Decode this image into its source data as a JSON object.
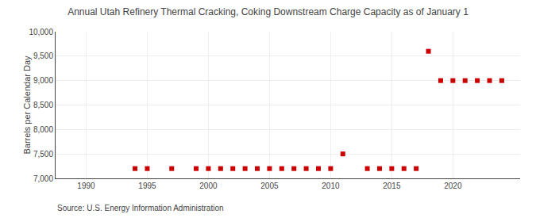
{
  "chart_data": {
    "type": "scatter",
    "title": "Annual Utah Refinery Thermal Cracking, Coking Downstream Charge Capacity as of January 1",
    "ylabel": "Barrels per Calendar Day",
    "annotations": [
      "Source: U.S. Energy Information Administration"
    ],
    "x": [
      1994,
      1995,
      1997,
      1999,
      2000,
      2001,
      2002,
      2003,
      2004,
      2005,
      2006,
      2007,
      2008,
      2009,
      2010,
      2011,
      2013,
      2014,
      2015,
      2016,
      2017,
      2018,
      2019,
      2020,
      2021,
      2022,
      2023,
      2024
    ],
    "values": [
      7200,
      7200,
      7200,
      7200,
      7200,
      7200,
      7200,
      7200,
      7200,
      7200,
      7200,
      7200,
      7200,
      7200,
      7200,
      7500,
      7200,
      7200,
      7200,
      7200,
      7200,
      9600,
      9000,
      9000,
      9000,
      9000,
      9000,
      9000
    ],
    "color": "#cc0000",
    "marker": "square",
    "xlim": [
      1987.5,
      2025.5
    ],
    "xticks": [
      1990,
      1995,
      2000,
      2005,
      2010,
      2015,
      2020
    ],
    "ylim": [
      7000,
      10000
    ],
    "yticks": [
      {
        "value": 7000,
        "label": "7,000"
      },
      {
        "value": 7500,
        "label": "7,500"
      },
      {
        "value": 8000,
        "label": "8,000"
      },
      {
        "value": 8500,
        "label": "8,500"
      },
      {
        "value": 9000,
        "label": "9,000"
      },
      {
        "value": 9500,
        "label": "9,500"
      },
      {
        "value": 10000,
        "label": "10,000"
      }
    ],
    "grid": true
  }
}
